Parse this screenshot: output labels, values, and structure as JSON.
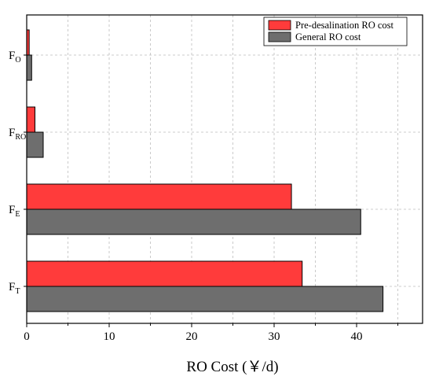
{
  "chart_data": {
    "type": "bar",
    "orientation": "horizontal",
    "categories": [
      {
        "main": "F",
        "sub": "O"
      },
      {
        "main": "F",
        "sub": "RO"
      },
      {
        "main": "F",
        "sub": "E"
      },
      {
        "main": "F",
        "sub": "T"
      }
    ],
    "series": [
      {
        "name": "Pre-desalination RO cost",
        "color": "#ff3b3b",
        "values": [
          0.3,
          1.0,
          32.1,
          33.4
        ]
      },
      {
        "name": "General RO cost",
        "color": "#6e6e6e",
        "values": [
          0.6,
          2.0,
          40.5,
          43.2
        ]
      }
    ],
    "xlabel": "RO Cost (￥/d)",
    "xlim": [
      0,
      48
    ],
    "xticks": [
      0,
      10,
      20,
      30,
      40
    ],
    "grid": true,
    "legend_position": "top-right"
  }
}
